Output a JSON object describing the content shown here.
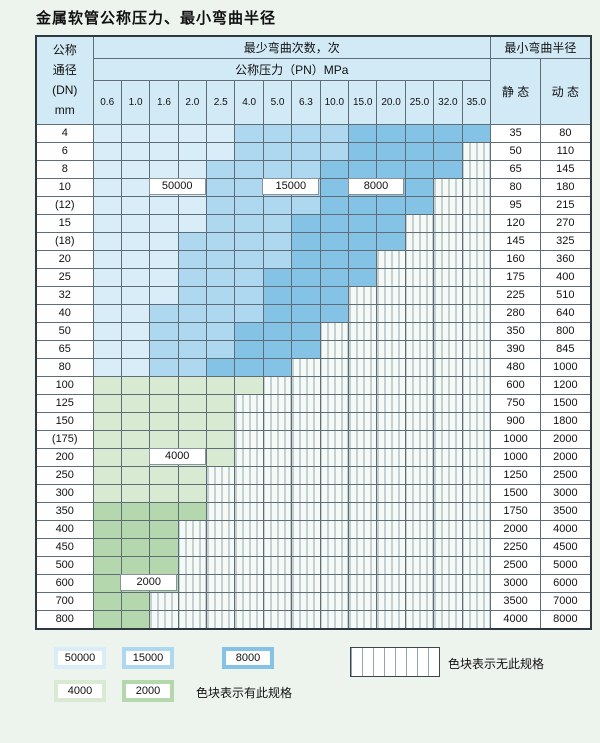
{
  "title": "金属软管公称压力、最小弯曲半径",
  "table": {
    "header": {
      "dn_lines": [
        "公称",
        "通径",
        "(DN)",
        "mm"
      ],
      "bend_times": "最少弯曲次数，次",
      "pressure": "公称压力（PN）MPa",
      "pressure_values": [
        "0.6",
        "1.0",
        "1.6",
        "2.0",
        "2.5",
        "4.0",
        "5.0",
        "6.3",
        "10.0",
        "15.0",
        "20.0",
        "25.0",
        "32.0",
        "35.0"
      ],
      "radius": "最小弯曲半径",
      "static": "静 态",
      "dynamic": "动 态"
    },
    "rows": [
      {
        "dn": "4",
        "cells": "LLLLLMMMMDDDDD",
        "static": "35",
        "dynamic": "80"
      },
      {
        "dn": "6",
        "cells": "LLLLLMMMMDDDDH",
        "static": "50",
        "dynamic": "110"
      },
      {
        "dn": "8",
        "cells": "LLLLMMMMDDDDDH",
        "static": "65",
        "dynamic": "145"
      },
      {
        "dn": "10",
        "cells": "LLLLMMMMDDDDHH",
        "static": "80",
        "dynamic": "180"
      },
      {
        "dn": "(12)",
        "cells": "LLLLMMMMDDDDHH",
        "static": "95",
        "dynamic": "215"
      },
      {
        "dn": "15",
        "cells": "LLLLMMMDDDDHHH",
        "static": "120",
        "dynamic": "270"
      },
      {
        "dn": "(18)",
        "cells": "LLLMMMMDDDDHHH",
        "static": "145",
        "dynamic": "325"
      },
      {
        "dn": "20",
        "cells": "LLLMMMMDDDHHHH",
        "static": "160",
        "dynamic": "360"
      },
      {
        "dn": "25",
        "cells": "LLLMMMDDDDHHHH",
        "static": "175",
        "dynamic": "400"
      },
      {
        "dn": "32",
        "cells": "LLLMMMDDDHHHHH",
        "static": "225",
        "dynamic": "510"
      },
      {
        "dn": "40",
        "cells": "LLMMMMDDDHHHHH",
        "static": "280",
        "dynamic": "640"
      },
      {
        "dn": "50",
        "cells": "LLMMMDDDHHHHHH",
        "static": "350",
        "dynamic": "800"
      },
      {
        "dn": "65",
        "cells": "LLMMMDDDHHHHHH",
        "static": "390",
        "dynamic": "845"
      },
      {
        "dn": "80",
        "cells": "LLMMDDDHHHHHHH",
        "static": "480",
        "dynamic": "1000"
      },
      {
        "dn": "100",
        "cells": "GGGGGGHHHHHHHH",
        "static": "600",
        "dynamic": "1200"
      },
      {
        "dn": "125",
        "cells": "GGGGGHHHHHHHHH",
        "static": "750",
        "dynamic": "1500"
      },
      {
        "dn": "150",
        "cells": "GGGGGHHHHHHHHH",
        "static": "900",
        "dynamic": "1800"
      },
      {
        "dn": "(175)",
        "cells": "GGGGGHHHHHHHHH",
        "static": "1000",
        "dynamic": "2000"
      },
      {
        "dn": "200",
        "cells": "GGGGGHHHHHHHHH",
        "static": "1000",
        "dynamic": "2000"
      },
      {
        "dn": "250",
        "cells": "GGGGHHHHHHHHHH",
        "static": "1250",
        "dynamic": "2500"
      },
      {
        "dn": "300",
        "cells": "GGGGHHHHHHHHHH",
        "static": "1500",
        "dynamic": "3000"
      },
      {
        "dn": "350",
        "cells": "EEEEHHHHHHHHHH",
        "static": "1750",
        "dynamic": "3500"
      },
      {
        "dn": "400",
        "cells": "EEEHHHHHHHHHHH",
        "static": "2000",
        "dynamic": "4000"
      },
      {
        "dn": "450",
        "cells": "EEEHHHHHHHHHHH",
        "static": "2250",
        "dynamic": "4500"
      },
      {
        "dn": "500",
        "cells": "EEEHHHHHHHHHHH",
        "static": "2500",
        "dynamic": "5000"
      },
      {
        "dn": "600",
        "cells": "EEEHHHHHHHHHHH",
        "static": "3000",
        "dynamic": "6000"
      },
      {
        "dn": "700",
        "cells": "EEHHHHHHHHHHHH",
        "static": "3500",
        "dynamic": "7000"
      },
      {
        "dn": "800",
        "cells": "EEHHHHHHHHHHHH",
        "static": "4000",
        "dynamic": "8000"
      }
    ]
  },
  "bands": {
    "L": {
      "label": "50000",
      "color": "#d9edf8"
    },
    "M": {
      "label": "15000",
      "color": "#aed8ef"
    },
    "D": {
      "label": "8000",
      "color": "#84c3e6"
    },
    "G": {
      "label": "4000",
      "color": "#d8ead2"
    },
    "E": {
      "label": "2000",
      "color": "#b4d7ae"
    },
    "H": {
      "label": "无此规格",
      "color": "hatch"
    }
  },
  "overlays": [
    {
      "text": "50000",
      "row_dn": "10",
      "cols": [
        3,
        4
      ]
    },
    {
      "text": "15000",
      "row_dn": "10",
      "cols": [
        7,
        8
      ]
    },
    {
      "text": "8000",
      "row_dn": "10",
      "cols": [
        10,
        11
      ]
    },
    {
      "text": "4000",
      "row_dn": "200",
      "cols": [
        3,
        4
      ]
    },
    {
      "text": "2000",
      "row_dn": "600",
      "cols": [
        2,
        3
      ]
    }
  ],
  "legend": {
    "items": [
      {
        "code": "L",
        "label": "50000"
      },
      {
        "code": "M",
        "label": "15000"
      },
      {
        "code": "D",
        "label": "8000"
      },
      {
        "code": "G",
        "label": "4000"
      },
      {
        "code": "E",
        "label": "2000"
      }
    ],
    "has_spec_text": "色块表示有此规格",
    "no_spec_text": "色块表示无此规格"
  }
}
